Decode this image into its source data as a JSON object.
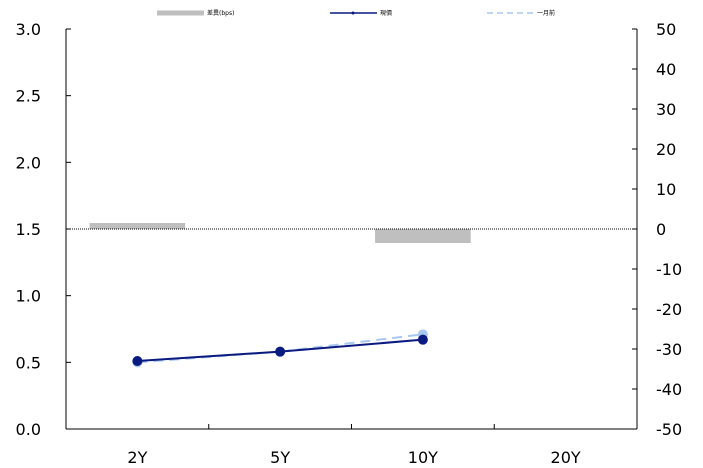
{
  "chart_data": {
    "type": "bar+line",
    "categories": [
      "2Y",
      "5Y",
      "10Y",
      "20Y"
    ],
    "legend": {
      "placement": "top",
      "entries": [
        "差異(bps)",
        "現價",
        "一月前"
      ]
    },
    "left_axis": {
      "ylim": [
        0.0,
        3.0
      ],
      "ticks": [
        "0.0",
        "0.5",
        "1.0",
        "1.5",
        "2.0",
        "2.5",
        "3.0"
      ]
    },
    "right_axis": {
      "ylim": [
        -50,
        50
      ],
      "ticks": [
        "-50",
        "-40",
        "-30",
        "-20",
        "-10",
        "0",
        "10",
        "20",
        "30",
        "40",
        "50"
      ]
    },
    "series": [
      {
        "name": "差異(bps)",
        "type": "bar",
        "axis": "right",
        "color": "#bfbfbf",
        "values": [
          1.5,
          null,
          -3.5,
          null
        ]
      },
      {
        "name": "現價",
        "type": "line",
        "axis": "left",
        "color": "#0a1a80",
        "values": [
          0.51,
          0.58,
          0.67,
          null
        ]
      },
      {
        "name": "一月前",
        "type": "line",
        "axis": "left",
        "color": "#a8c8ee",
        "dashed": true,
        "values": [
          0.5,
          0.58,
          0.71,
          null
        ]
      }
    ],
    "zero_line": {
      "axis": "right",
      "value": 0
    }
  }
}
